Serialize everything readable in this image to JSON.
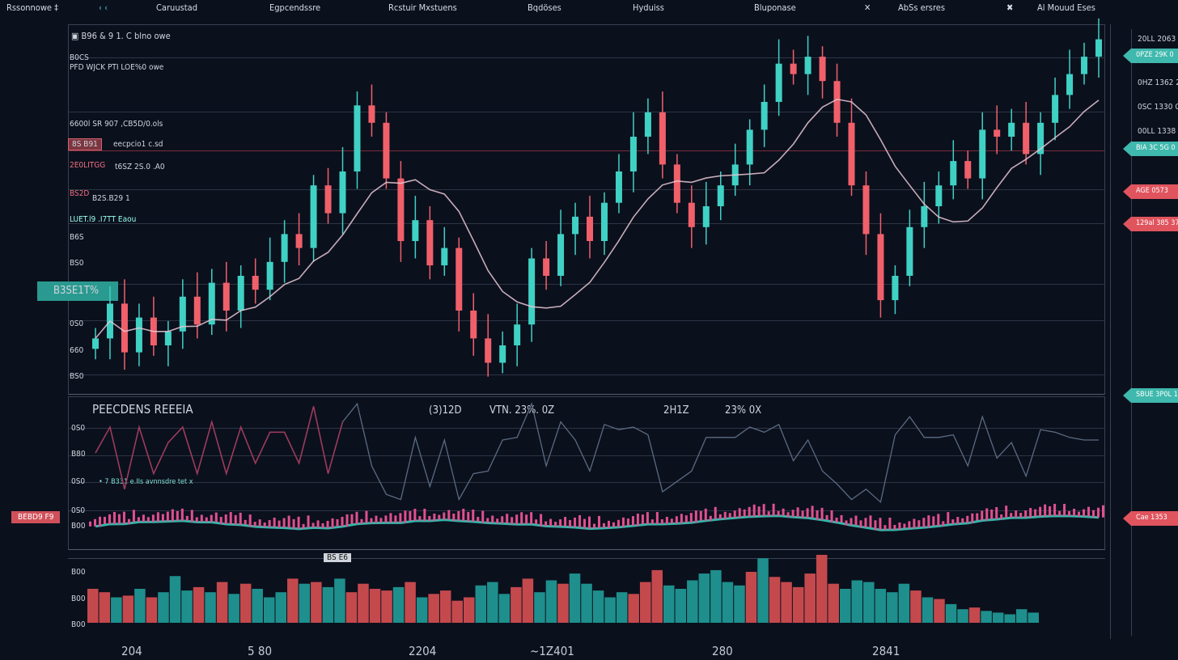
{
  "menu": {
    "items": [
      "Rssonnowe ‡",
      "Caruustad",
      "Egpcendssre",
      "Rcstuir Mxstuens",
      "Bqdöses",
      "Hyduiss",
      "Bluponase",
      "AbSs ersres",
      "Al Mouud Eses"
    ]
  },
  "chart": {
    "header": "B96 & 9 1. C blno owe",
    "subheader_1": "B0CS",
    "subheader_2": "PFD WJCK PTI LOE%0 owe",
    "left_labels": [
      "6600l SR 907 ,CB5D/0.ols",
      "8S B91",
      "eecpcio1 c.sd",
      "2E0LITGG",
      "t6SZ 2S.0 .A0",
      "BS2D",
      "B2S.B29 1",
      "LUET.l9 .I7TT Eaou",
      "B6S",
      "BS0",
      "B3SE1T%",
      "0S0",
      "660",
      "BS0"
    ],
    "colors": {
      "up": "#3fd1c4",
      "down": "#f0606a",
      "ma": "#e8c8d4",
      "background": "#0b101d"
    },
    "candle_closes": [
      12,
      22,
      8,
      18,
      10,
      14,
      24,
      16,
      28,
      20,
      30,
      26,
      34,
      42,
      38,
      56,
      48,
      60,
      79,
      74,
      58,
      40,
      46,
      33,
      38,
      20,
      12,
      5,
      10,
      16,
      35,
      30,
      42,
      47,
      40,
      51,
      60,
      70,
      77,
      62,
      51,
      44,
      50,
      56,
      62,
      72,
      80,
      91,
      88,
      93,
      86,
      74,
      56,
      42,
      23,
      30,
      44,
      50,
      56,
      63,
      58,
      72,
      70,
      74,
      65,
      74,
      82,
      88,
      93,
      98
    ],
    "ma_period": 8
  },
  "right_axis": {
    "labels": [
      "20LL 2063 D",
      "0HZ 1362 20",
      "0SC 1330 CH",
      "00LL 1338 30"
    ],
    "tags": [
      {
        "text": "0PZE 29K 0",
        "color": "#3fb8ad"
      },
      {
        "text": "BIA 3C 5G 0",
        "color": "#3fb8ad"
      },
      {
        "text": "AGE 0573",
        "color": "#e0545e"
      },
      {
        "text": "129al 385 37",
        "color": "#e0545e"
      },
      {
        "text": "SBUE 3P0L 1",
        "color": "#3fb8ad"
      },
      {
        "text": "Cae 1353",
        "color": "#e0545e"
      }
    ]
  },
  "indicator": {
    "title": "PEECDENS REEEIA",
    "readouts": [
      "(3)12D",
      "VTN. 23%. 0Z",
      "2H1Z",
      "23% 0X"
    ],
    "axis": [
      "0S0",
      "B80",
      "0S0",
      "0S0",
      "B00",
      "0S0"
    ],
    "legend": "• 7 B331 e.IIs avnnsdre tet x",
    "left_tag": "BEBD9 F9"
  },
  "volume": {
    "badge": "BS E6",
    "axis": [
      "B00",
      "B00",
      "B00"
    ],
    "values": [
      40,
      36,
      30,
      32,
      40,
      30,
      36,
      55,
      38,
      42,
      36,
      48,
      34,
      46,
      40,
      30,
      36,
      52,
      46,
      48,
      42,
      52,
      36,
      46,
      40,
      38,
      42,
      48,
      30,
      34,
      38,
      26,
      30,
      44,
      48,
      34,
      42,
      52,
      36,
      50,
      46,
      58,
      46,
      38,
      30,
      36,
      34,
      48,
      62,
      44,
      40,
      50,
      58,
      62,
      48,
      44,
      60,
      76,
      54,
      48,
      42,
      58,
      80,
      46,
      40,
      50,
      48,
      40,
      36,
      46,
      38,
      30,
      28,
      22,
      16,
      18,
      14,
      12,
      10,
      16,
      12
    ],
    "up_color": "#1e8f8c",
    "down_color": "#c4494d"
  },
  "x_axis": [
    "204",
    "5 80",
    "2204",
    "~1Z401",
    "280",
    "2841"
  ]
}
